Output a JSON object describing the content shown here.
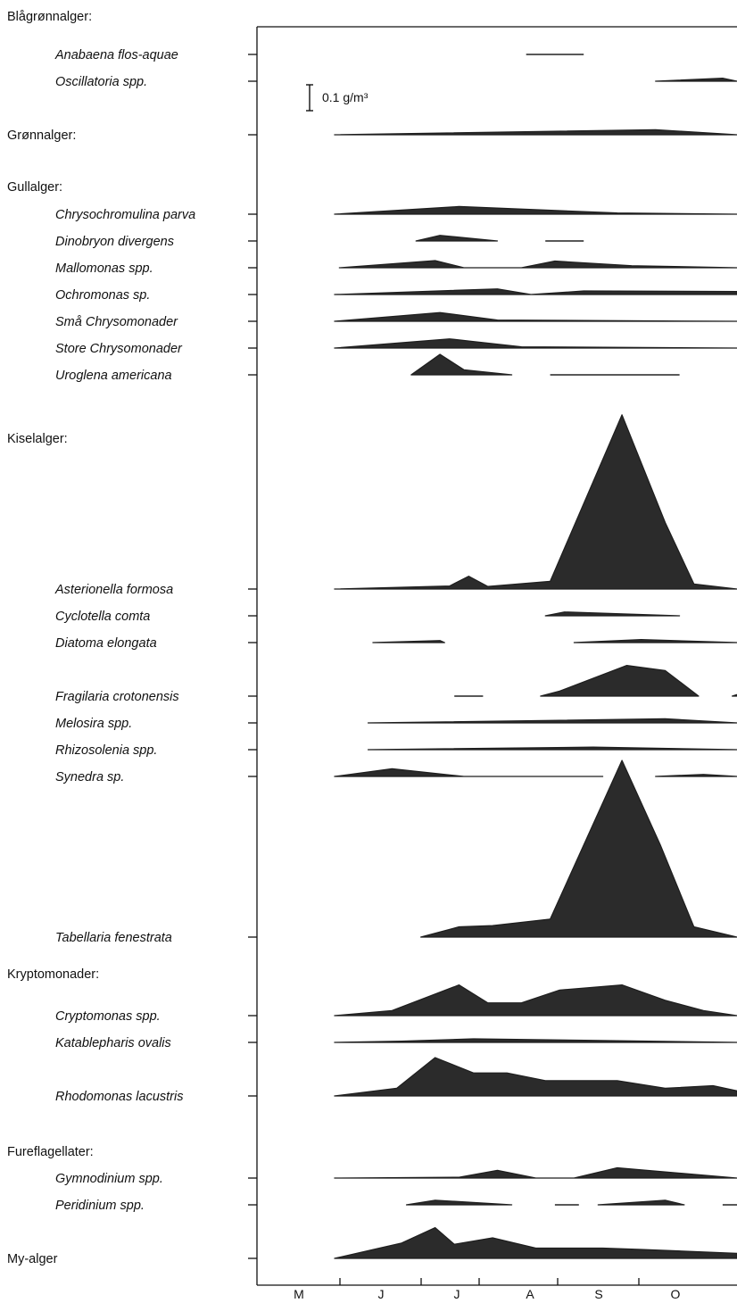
{
  "chart_data": {
    "type": "area",
    "x_axis": {
      "ticks": [
        "M",
        "J",
        "J",
        "A",
        "S",
        "O"
      ]
    },
    "scale_bar": {
      "label": "0.1 g/m³",
      "value": 0.1,
      "unit": "g/m³"
    },
    "rows": [
      {
        "label": "Blågrønnalger:",
        "type": "group"
      },
      {
        "label": "Anabaena flos-aquae",
        "type": "species",
        "segments": [
          [
            [
              0.56,
              0.0
            ],
            [
              0.68,
              0.0
            ]
          ]
        ]
      },
      {
        "label": "Oscillatoria spp.",
        "type": "species",
        "segments": [
          [
            [
              0.83,
              0.0
            ],
            [
              0.97,
              0.012
            ],
            [
              1.0,
              0.0
            ]
          ]
        ]
      },
      {
        "label": "Grønnalger:",
        "type": "group",
        "segments": [
          [
            [
              0.16,
              0.0
            ],
            [
              0.83,
              0.02
            ],
            [
              1.0,
              0.0
            ]
          ]
        ]
      },
      {
        "label": "Gullalger:",
        "type": "group"
      },
      {
        "label": "Chrysochromulina parva",
        "type": "species",
        "segments": [
          [
            [
              0.16,
              0.0
            ],
            [
              0.42,
              0.03
            ],
            [
              0.75,
              0.005
            ],
            [
              1.0,
              0.0
            ]
          ]
        ]
      },
      {
        "label": "Dinobryon divergens",
        "type": "species",
        "segments": [
          [
            [
              0.33,
              0.0
            ],
            [
              0.38,
              0.022
            ],
            [
              0.5,
              0.0
            ]
          ],
          [
            [
              0.6,
              0.0
            ],
            [
              0.68,
              0.0
            ]
          ]
        ]
      },
      {
        "label": "Mallomonas spp.",
        "type": "species",
        "segments": [
          [
            [
              0.17,
              0.0
            ],
            [
              0.37,
              0.028
            ],
            [
              0.43,
              0.0
            ],
            [
              0.55,
              0.0
            ],
            [
              0.62,
              0.026
            ],
            [
              0.78,
              0.008
            ],
            [
              1.0,
              0.0
            ]
          ]
        ]
      },
      {
        "label": "Ochromonas sp.",
        "type": "species",
        "segments": [
          [
            [
              0.16,
              0.0
            ],
            [
              0.5,
              0.022
            ],
            [
              0.57,
              0.0
            ],
            [
              0.68,
              0.014
            ],
            [
              1.0,
              0.012
            ]
          ]
        ]
      },
      {
        "label": "Små Chrysomonader",
        "type": "species",
        "segments": [
          [
            [
              0.16,
              0.0
            ],
            [
              0.38,
              0.034
            ],
            [
              0.5,
              0.005
            ],
            [
              1.0,
              0.0
            ]
          ]
        ]
      },
      {
        "label": "Store Chrysomonader",
        "type": "species",
        "segments": [
          [
            [
              0.16,
              0.0
            ],
            [
              0.4,
              0.036
            ],
            [
              0.55,
              0.005
            ],
            [
              1.0,
              0.0
            ]
          ]
        ]
      },
      {
        "label": "Uroglena americana",
        "type": "species",
        "segments": [
          [
            [
              0.32,
              0.0
            ],
            [
              0.38,
              0.08
            ],
            [
              0.43,
              0.02
            ],
            [
              0.53,
              0.0
            ]
          ],
          [
            [
              0.61,
              0.0
            ],
            [
              0.88,
              0.0
            ]
          ]
        ]
      },
      {
        "label": "Kiselalger:",
        "type": "group"
      },
      {
        "label": "Asterionella formosa",
        "type": "species",
        "segments": [
          [
            [
              0.16,
              0.0
            ],
            [
              0.4,
              0.012
            ],
            [
              0.44,
              0.05
            ],
            [
              0.48,
              0.01
            ],
            [
              0.61,
              0.03
            ],
            [
              0.76,
              0.68
            ],
            [
              0.85,
              0.26
            ],
            [
              0.91,
              0.02
            ],
            [
              1.0,
              0.0
            ]
          ]
        ]
      },
      {
        "label": "Cyclotella comta",
        "type": "species",
        "segments": [
          [
            [
              0.6,
              0.0
            ],
            [
              0.64,
              0.015
            ],
            [
              0.88,
              0.0
            ]
          ]
        ]
      },
      {
        "label": "Diatoma elongata",
        "type": "species",
        "segments": [
          [
            [
              0.24,
              0.0
            ],
            [
              0.38,
              0.008
            ],
            [
              0.39,
              0.0
            ]
          ],
          [
            [
              0.66,
              0.0
            ],
            [
              0.8,
              0.012
            ],
            [
              1.0,
              0.0
            ]
          ]
        ]
      },
      {
        "label": "Fragilaria crotonensis",
        "type": "species",
        "segments": [
          [
            [
              0.41,
              0.0
            ],
            [
              0.47,
              0.0
            ]
          ],
          [
            [
              0.59,
              0.0
            ],
            [
              0.63,
              0.02
            ],
            [
              0.77,
              0.12
            ],
            [
              0.85,
              0.1
            ],
            [
              0.92,
              0.0
            ]
          ],
          [
            [
              0.99,
              0.0
            ],
            [
              1.04,
              0.03
            ],
            [
              1.1,
              0.0
            ]
          ]
        ]
      },
      {
        "label": "Melosira spp.",
        "type": "species",
        "segments": [
          [
            [
              0.23,
              0.0
            ],
            [
              0.85,
              0.016
            ],
            [
              1.0,
              0.0
            ]
          ]
        ]
      },
      {
        "label": "Rhizosolenia spp.",
        "type": "species",
        "segments": [
          [
            [
              0.23,
              0.0
            ],
            [
              0.7,
              0.01
            ],
            [
              1.0,
              0.0
            ]
          ]
        ]
      },
      {
        "label": "Synedra sp.",
        "type": "species",
        "segments": [
          [
            [
              0.16,
              0.0
            ],
            [
              0.28,
              0.03
            ],
            [
              0.43,
              0.0
            ],
            [
              0.72,
              0.0
            ]
          ],
          [
            [
              0.83,
              0.0
            ],
            [
              0.93,
              0.008
            ],
            [
              1.0,
              0.0
            ]
          ]
        ]
      },
      {
        "label": "Tabellaria fenestrata",
        "type": "species",
        "segments": [
          [
            [
              0.34,
              0.0
            ],
            [
              0.42,
              0.04
            ],
            [
              0.49,
              0.045
            ],
            [
              0.61,
              0.07
            ],
            [
              0.76,
              0.69
            ],
            [
              0.84,
              0.36
            ],
            [
              0.91,
              0.04
            ],
            [
              1.0,
              0.0
            ]
          ]
        ]
      },
      {
        "label": "Kryptomonader:",
        "type": "group"
      },
      {
        "label": "Cryptomonas spp.",
        "type": "species",
        "segments": [
          [
            [
              0.16,
              0.0
            ],
            [
              0.28,
              0.02
            ],
            [
              0.42,
              0.12
            ],
            [
              0.48,
              0.05
            ],
            [
              0.55,
              0.05
            ],
            [
              0.63,
              0.1
            ],
            [
              0.76,
              0.12
            ],
            [
              0.85,
              0.06
            ],
            [
              0.93,
              0.02
            ],
            [
              1.0,
              0.0
            ]
          ]
        ]
      },
      {
        "label": "Katablepharis ovalis",
        "type": "species",
        "segments": [
          [
            [
              0.16,
              0.0
            ],
            [
              0.3,
              0.005
            ],
            [
              0.45,
              0.014
            ],
            [
              0.7,
              0.008
            ],
            [
              1.0,
              0.0
            ]
          ]
        ]
      },
      {
        "label": "Rhodomonas lacustris",
        "type": "species",
        "segments": [
          [
            [
              0.16,
              0.0
            ],
            [
              0.29,
              0.03
            ],
            [
              0.37,
              0.15
            ],
            [
              0.45,
              0.09
            ],
            [
              0.52,
              0.09
            ],
            [
              0.6,
              0.06
            ],
            [
              0.75,
              0.06
            ],
            [
              0.85,
              0.03
            ],
            [
              0.95,
              0.04
            ],
            [
              1.0,
              0.02
            ]
          ]
        ]
      },
      {
        "label": "Fureflagellater:",
        "type": "group"
      },
      {
        "label": "Gymnodinium spp.",
        "type": "species",
        "segments": [
          [
            [
              0.16,
              0.0
            ],
            [
              0.42,
              0.003
            ],
            [
              0.5,
              0.03
            ],
            [
              0.58,
              0.0
            ],
            [
              0.66,
              0.0
            ],
            [
              0.75,
              0.04
            ],
            [
              1.0,
              0.0
            ]
          ]
        ]
      },
      {
        "label": "Peridinium spp.",
        "type": "species",
        "segments": [
          [
            [
              0.31,
              0.0
            ],
            [
              0.37,
              0.018
            ],
            [
              0.53,
              0.0
            ]
          ],
          [
            [
              0.62,
              0.0
            ],
            [
              0.67,
              0.0
            ]
          ],
          [
            [
              0.71,
              0.0
            ],
            [
              0.85,
              0.018
            ],
            [
              0.89,
              0.0
            ]
          ],
          [
            [
              0.97,
              0.0
            ],
            [
              1.0,
              0.0
            ]
          ]
        ]
      },
      {
        "label": "My-alger",
        "type": "group",
        "segments": [
          [
            [
              0.16,
              0.0
            ],
            [
              0.3,
              0.06
            ],
            [
              0.37,
              0.12
            ],
            [
              0.41,
              0.055
            ],
            [
              0.49,
              0.08
            ],
            [
              0.58,
              0.04
            ],
            [
              0.72,
              0.04
            ],
            [
              0.8,
              0.035
            ],
            [
              1.0,
              0.02
            ]
          ]
        ]
      }
    ]
  }
}
